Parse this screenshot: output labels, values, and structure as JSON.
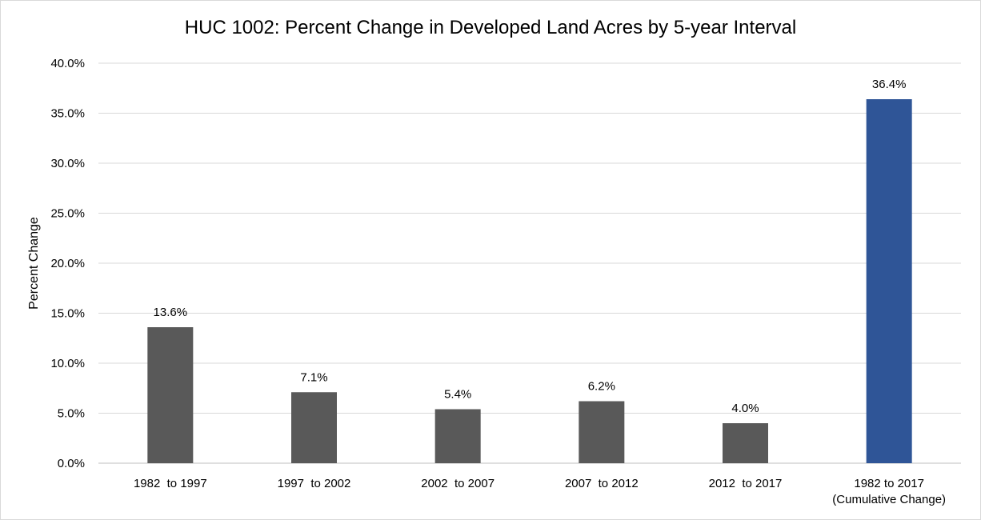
{
  "chart_data": {
    "type": "bar",
    "title": "HUC 1002: Percent Change in Developed Land Acres by 5-year Interval",
    "xlabel": "",
    "ylabel": "Percent Change",
    "categories": [
      [
        "1982  to 1997"
      ],
      [
        "1997  to 2002"
      ],
      [
        "2002  to 2007"
      ],
      [
        "2007  to 2012"
      ],
      [
        "2012  to 2017"
      ],
      [
        "1982 to 2017",
        "(Cumulative Change)"
      ]
    ],
    "values": [
      13.6,
      7.1,
      5.4,
      6.2,
      4.0,
      36.4
    ],
    "data_labels": [
      "13.6%",
      "7.1%",
      "5.4%",
      "6.2%",
      "4.0%",
      "36.4%"
    ],
    "ylim": [
      0,
      40
    ],
    "yticks": [
      0,
      5,
      10,
      15,
      20,
      25,
      30,
      35,
      40
    ],
    "ytick_labels": [
      "0.0%",
      "5.0%",
      "10.0%",
      "15.0%",
      "20.0%",
      "25.0%",
      "30.0%",
      "35.0%",
      "40.0%"
    ],
    "grid": true,
    "legend": "none",
    "bar_colors": [
      "#595959",
      "#595959",
      "#595959",
      "#595959",
      "#595959",
      "#2f5597"
    ],
    "gridline_color": "#d9d9d9"
  }
}
